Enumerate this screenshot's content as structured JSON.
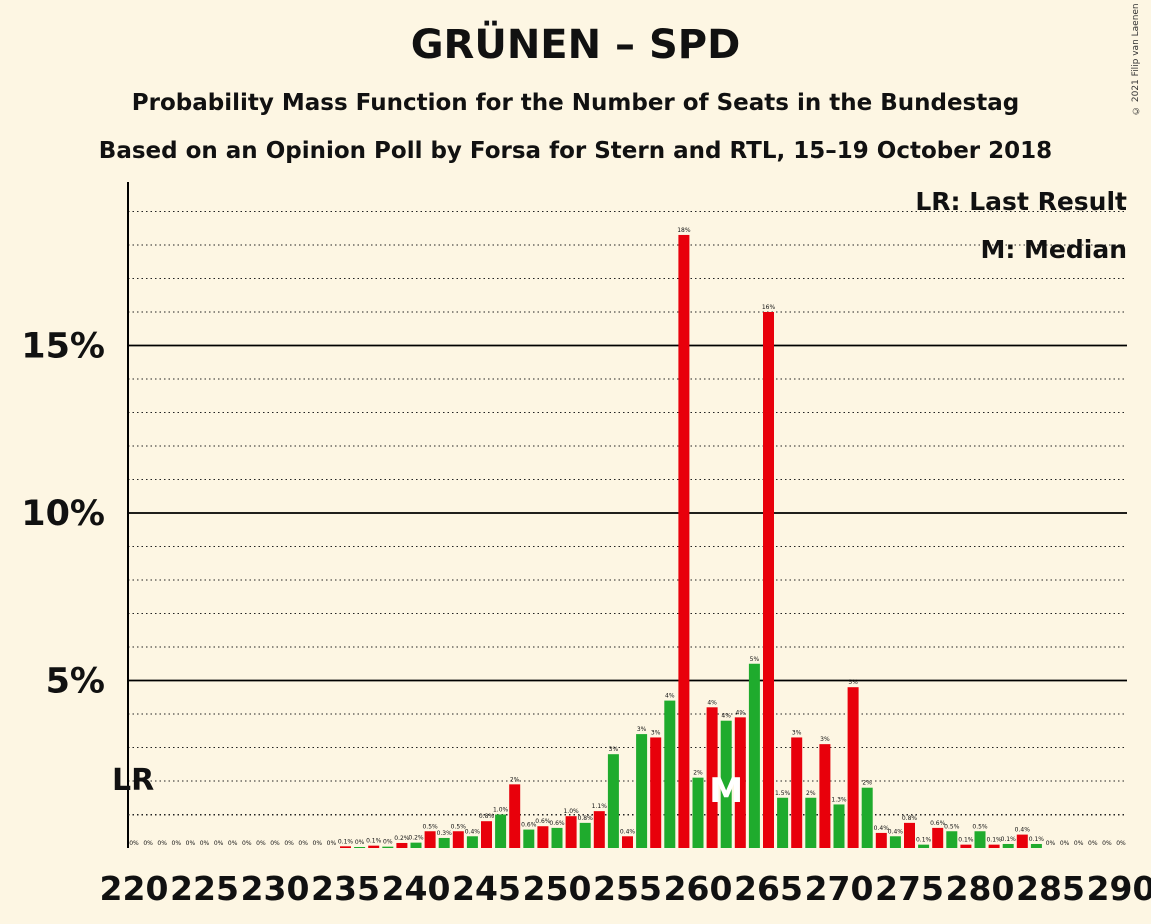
{
  "title": "GRÜNEN – SPD",
  "subtitle": "Probability Mass Function for the Number of Seats in the Bundestag",
  "caption": "Based on an Opinion Poll by Forsa for Stern and RTL, 15–19 October 2018",
  "copyright": "© 2021 Filip van Laenen",
  "colors": {
    "background": "#fdf6e3",
    "red": "#e8000b",
    "green": "#1fab2d"
  },
  "chart_data": {
    "type": "bar",
    "title": "GRÜNEN – SPD",
    "ylim": [
      0,
      20
    ],
    "y_ticks": [
      {
        "value": 5,
        "label": "5%"
      },
      {
        "value": 10,
        "label": "10%"
      },
      {
        "value": 15,
        "label": "15%"
      }
    ],
    "x_ticks": [
      220,
      225,
      230,
      235,
      240,
      245,
      250,
      255,
      260,
      265,
      270,
      275,
      280,
      285,
      290
    ],
    "legend": [
      "LR: Last Result",
      "M: Median"
    ],
    "legend_position": "top-right",
    "last_result": {
      "seat": 220,
      "label": "LR"
    },
    "median": {
      "seat": 262,
      "label": "M"
    },
    "bars": [
      {
        "seat": 220,
        "value": 0,
        "label": "0%"
      },
      {
        "seat": 221,
        "value": 0,
        "label": "0%"
      },
      {
        "seat": 222,
        "value": 0,
        "label": "0%"
      },
      {
        "seat": 223,
        "value": 0,
        "label": "0%"
      },
      {
        "seat": 224,
        "value": 0,
        "label": "0%"
      },
      {
        "seat": 225,
        "value": 0,
        "label": "0%"
      },
      {
        "seat": 226,
        "value": 0,
        "label": "0%"
      },
      {
        "seat": 227,
        "value": 0,
        "label": "0%"
      },
      {
        "seat": 228,
        "value": 0,
        "label": "0%"
      },
      {
        "seat": 229,
        "value": 0,
        "label": "0%"
      },
      {
        "seat": 230,
        "value": 0,
        "label": "0%"
      },
      {
        "seat": 231,
        "value": 0,
        "label": "0%"
      },
      {
        "seat": 232,
        "value": 0,
        "label": "0%"
      },
      {
        "seat": 233,
        "value": 0,
        "label": "0%"
      },
      {
        "seat": 234,
        "value": 0,
        "label": "0%"
      },
      {
        "seat": 235,
        "value": 0.05,
        "label": "0.1%"
      },
      {
        "seat": 236,
        "value": 0.03,
        "label": "0%"
      },
      {
        "seat": 237,
        "value": 0.07,
        "label": "0.1%"
      },
      {
        "seat": 238,
        "value": 0.04,
        "label": "0%"
      },
      {
        "seat": 239,
        "value": 0.15,
        "label": "0.2%"
      },
      {
        "seat": 240,
        "value": 0.16,
        "label": "0.2%"
      },
      {
        "seat": 241,
        "value": 0.5,
        "label": "0.5%"
      },
      {
        "seat": 242,
        "value": 0.3,
        "label": "0.3%"
      },
      {
        "seat": 243,
        "value": 0.5,
        "label": "0.5%"
      },
      {
        "seat": 244,
        "value": 0.35,
        "label": "0.4%"
      },
      {
        "seat": 245,
        "value": 0.8,
        "label": "0.8%"
      },
      {
        "seat": 246,
        "value": 1.0,
        "label": "1.0%"
      },
      {
        "seat": 247,
        "value": 1.9,
        "label": "2%"
      },
      {
        "seat": 248,
        "value": 0.55,
        "label": "0.6%"
      },
      {
        "seat": 249,
        "value": 0.65,
        "label": "0.6%"
      },
      {
        "seat": 250,
        "value": 0.6,
        "label": "0.6%"
      },
      {
        "seat": 251,
        "value": 0.95,
        "label": "1.0%"
      },
      {
        "seat": 252,
        "value": 0.75,
        "label": "0.8%"
      },
      {
        "seat": 253,
        "value": 1.1,
        "label": "1.1%"
      },
      {
        "seat": 254,
        "value": 2.8,
        "label": "3%"
      },
      {
        "seat": 255,
        "value": 0.35,
        "label": "0.4%"
      },
      {
        "seat": 256,
        "value": 3.4,
        "label": "3%"
      },
      {
        "seat": 257,
        "value": 3.3,
        "label": "3%"
      },
      {
        "seat": 258,
        "value": 4.4,
        "label": "4%"
      },
      {
        "seat": 259,
        "value": 18.3,
        "label": "18%"
      },
      {
        "seat": 260,
        "value": 2.1,
        "label": "2%"
      },
      {
        "seat": 261,
        "value": 4.2,
        "label": "4%"
      },
      {
        "seat": 262,
        "value": 3.8,
        "label": "4%"
      },
      {
        "seat": 263,
        "value": 3.9,
        "label": "4%"
      },
      {
        "seat": 264,
        "value": 5.5,
        "label": "5%"
      },
      {
        "seat": 265,
        "value": 16.0,
        "label": "16%"
      },
      {
        "seat": 266,
        "value": 1.5,
        "label": "1.5%"
      },
      {
        "seat": 267,
        "value": 3.3,
        "label": "3%"
      },
      {
        "seat": 268,
        "value": 1.5,
        "label": "2%"
      },
      {
        "seat": 269,
        "value": 3.1,
        "label": "3%"
      },
      {
        "seat": 270,
        "value": 1.3,
        "label": "1.3%"
      },
      {
        "seat": 271,
        "value": 4.8,
        "label": "5%"
      },
      {
        "seat": 272,
        "value": 1.8,
        "label": "2%"
      },
      {
        "seat": 273,
        "value": 0.45,
        "label": "0.4%"
      },
      {
        "seat": 274,
        "value": 0.35,
        "label": "0.4%"
      },
      {
        "seat": 275,
        "value": 0.75,
        "label": "0.8%"
      },
      {
        "seat": 276,
        "value": 0.1,
        "label": "0.1%"
      },
      {
        "seat": 277,
        "value": 0.6,
        "label": "0.6%"
      },
      {
        "seat": 278,
        "value": 0.5,
        "label": "0.5%"
      },
      {
        "seat": 279,
        "value": 0.1,
        "label": "0.1%"
      },
      {
        "seat": 280,
        "value": 0.5,
        "label": "0.5%"
      },
      {
        "seat": 281,
        "value": 0.1,
        "label": "0.1%"
      },
      {
        "seat": 282,
        "value": 0.12,
        "label": "0.1%"
      },
      {
        "seat": 283,
        "value": 0.4,
        "label": "0.4%"
      },
      {
        "seat": 284,
        "value": 0.12,
        "label": "0.1%"
      },
      {
        "seat": 285,
        "value": 0,
        "label": "0%"
      },
      {
        "seat": 286,
        "value": 0,
        "label": "0%"
      },
      {
        "seat": 287,
        "value": 0,
        "label": "0%"
      },
      {
        "seat": 288,
        "value": 0,
        "label": "0%"
      },
      {
        "seat": 289,
        "value": 0,
        "label": "0%"
      },
      {
        "seat": 290,
        "value": 0,
        "label": "0%"
      }
    ]
  }
}
